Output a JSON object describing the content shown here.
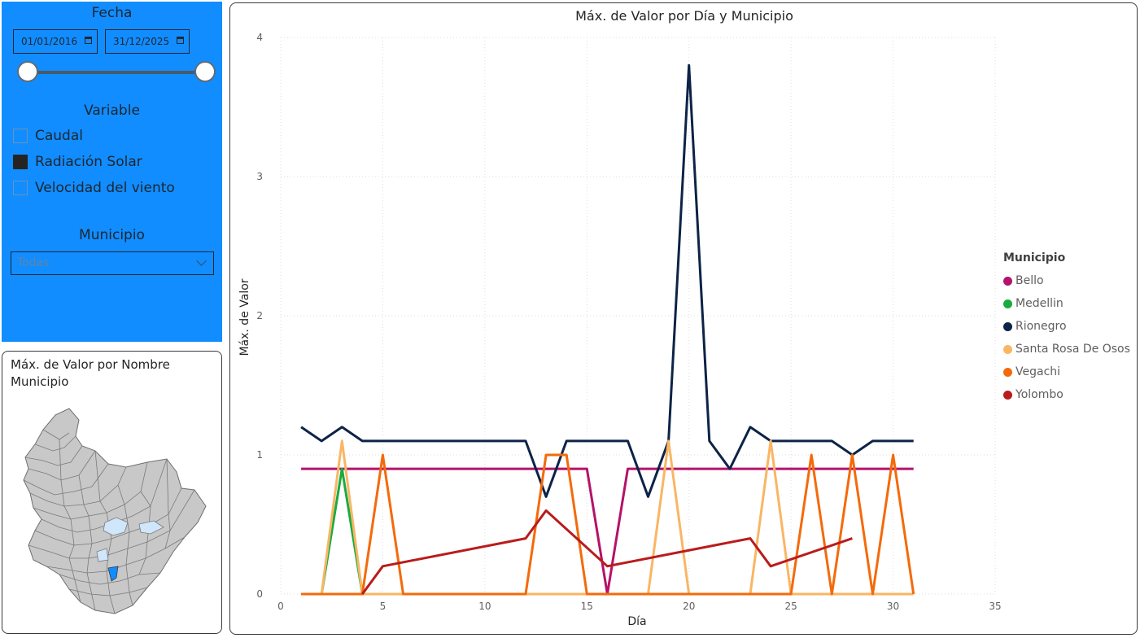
{
  "filters": {
    "fecha_title": "Fecha",
    "date_start": "01/01/2016",
    "date_end": "31/12/2025",
    "variable_title": "Variable",
    "variables": [
      {
        "label": "Caudal",
        "checked": false
      },
      {
        "label": "Radiación Solar",
        "checked": true
      },
      {
        "label": "Velocidad del viento",
        "checked": false
      }
    ],
    "municipio_title": "Municipio",
    "municipio_selected": "Todas"
  },
  "map": {
    "title": "Máx. de Valor por Nombre Municipio",
    "region_color": "#c8c8c8",
    "highlight_color": "#118dff",
    "water_color": "#cfe6fb"
  },
  "chart_data": {
    "type": "line",
    "title": "Máx. de Valor por Día y Municipio",
    "xlabel": "Día",
    "ylabel": "Máx. de Valor",
    "xlim": [
      0,
      35
    ],
    "ylim": [
      0,
      4
    ],
    "xticks": [
      0,
      5,
      10,
      15,
      20,
      25,
      30,
      35
    ],
    "yticks": [
      0,
      1,
      2,
      3,
      4
    ],
    "grid": true,
    "legend_title": "Municipio",
    "legend_position": "right",
    "series": [
      {
        "name": "Bello",
        "color": "#b5126b",
        "points": [
          [
            1,
            0.9
          ],
          [
            15,
            0.9
          ],
          [
            16,
            0
          ],
          [
            17,
            0.9
          ],
          [
            31,
            0.9
          ]
        ]
      },
      {
        "name": "Medellin",
        "color": "#1aab40",
        "points": [
          [
            1,
            0
          ],
          [
            2,
            0
          ],
          [
            3,
            0.9
          ],
          [
            4,
            0
          ]
        ]
      },
      {
        "name": "Rionegro",
        "color": "#0d2347",
        "points": [
          [
            1,
            1.2
          ],
          [
            2,
            1.1
          ],
          [
            3,
            1.2
          ],
          [
            4,
            1.1
          ],
          [
            12,
            1.1
          ],
          [
            13,
            0.7
          ],
          [
            14,
            1.1
          ],
          [
            17,
            1.1
          ],
          [
            18,
            0.7
          ],
          [
            19,
            1.1
          ],
          [
            20,
            3.8
          ],
          [
            21,
            1.1
          ],
          [
            22,
            0.9
          ],
          [
            23,
            1.2
          ],
          [
            24,
            1.1
          ],
          [
            27,
            1.1
          ],
          [
            28,
            1.0
          ],
          [
            29,
            1.1
          ],
          [
            31,
            1.1
          ]
        ]
      },
      {
        "name": "Santa Rosa De Osos",
        "color": "#f9b664",
        "points": [
          [
            1,
            0
          ],
          [
            2,
            0
          ],
          [
            3,
            1.1
          ],
          [
            4,
            0
          ],
          [
            18,
            0
          ],
          [
            19,
            1.1
          ],
          [
            20,
            0
          ],
          [
            23,
            0
          ],
          [
            24,
            1.1
          ],
          [
            25,
            0
          ],
          [
            31,
            0
          ]
        ]
      },
      {
        "name": "Vegachi",
        "color": "#f46a0a",
        "points": [
          [
            1,
            0
          ],
          [
            4,
            0
          ],
          [
            5,
            1.0
          ],
          [
            6,
            0
          ],
          [
            12,
            0
          ],
          [
            13,
            1.0
          ],
          [
            14,
            1.0
          ],
          [
            15,
            0
          ],
          [
            25,
            0
          ],
          [
            26,
            1.0
          ],
          [
            27,
            0
          ],
          [
            28,
            1.0
          ],
          [
            29,
            0
          ],
          [
            30,
            1.0
          ],
          [
            31,
            0
          ]
        ]
      },
      {
        "name": "Yolombo",
        "color": "#b91c1c",
        "points": [
          [
            4,
            0
          ],
          [
            5,
            0.2
          ],
          [
            12,
            0.4
          ],
          [
            13,
            0.6
          ],
          [
            16,
            0.2
          ],
          [
            23,
            0.4
          ],
          [
            24,
            0.2
          ],
          [
            28,
            0.4
          ]
        ]
      }
    ]
  }
}
